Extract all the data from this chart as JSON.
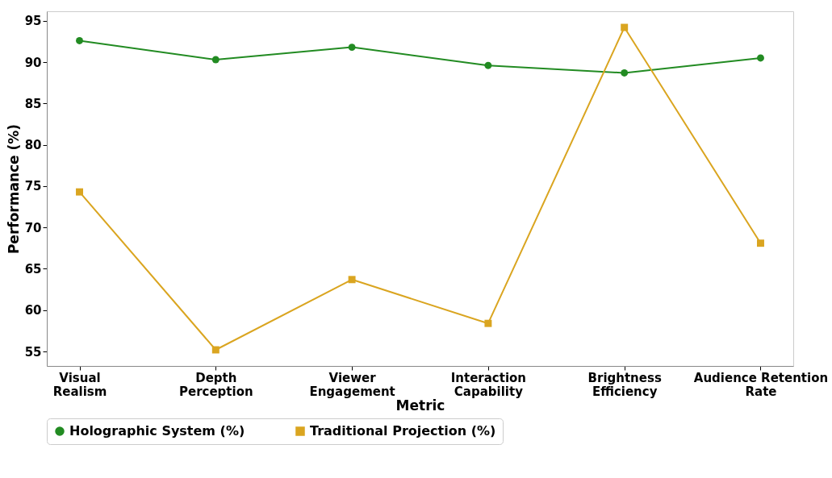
{
  "chart_data": {
    "type": "line",
    "xlabel": "Metric",
    "ylabel": "Performance (%)",
    "categories": [
      "Visual Realism",
      "Depth Perception",
      "Viewer Engagement",
      "Interaction Capability",
      "Brightness Efficiency",
      "Audience Retention Rate"
    ],
    "series": [
      {
        "name": "Holographic System (%)",
        "color": "#228b22",
        "marker": "circle",
        "values": [
          92.6,
          90.3,
          91.8,
          89.6,
          88.7,
          90.5
        ]
      },
      {
        "name": "Traditional Projection (%)",
        "color": "#daa520",
        "marker": "square",
        "values": [
          74.3,
          55.2,
          63.7,
          58.4,
          94.2,
          68.1
        ]
      }
    ],
    "ylim": [
      53.25,
      96.15
    ],
    "yticks": [
      55,
      60,
      65,
      70,
      75,
      80,
      85,
      90,
      95
    ],
    "grid": false,
    "legend": "bottom",
    "line_style": "solid"
  }
}
